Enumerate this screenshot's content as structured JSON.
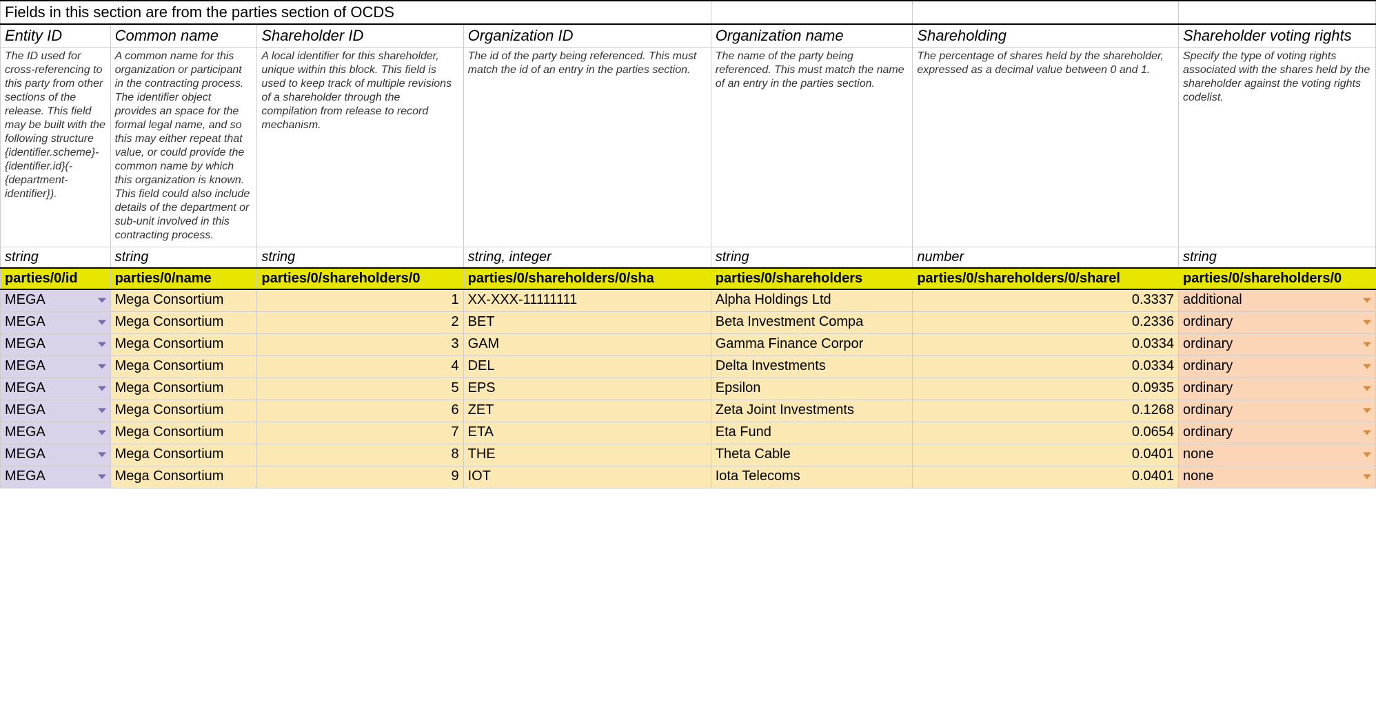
{
  "title": "Fields in this section are from the parties section of OCDS",
  "columns": [
    {
      "header": "Entity ID",
      "desc": "The ID used for cross-referencing to this party from other sections of the release. This field may be built with the following structure {identifier.scheme}-{identifier.id}(-{department-identifier}).",
      "type": "string",
      "path": "parties/0/id",
      "colClass": "col-purple",
      "dropdown": "purple",
      "align": "left"
    },
    {
      "header": "Common name",
      "desc": "A common name for this organization or participant in the contracting process. The identifier object provides an space for the formal legal name, and so this may either repeat that value, or could provide the common name by which this organization is known. This field could also include details of the department or sub-unit involved in this contracting process.",
      "type": "string",
      "path": "parties/0/name",
      "colClass": "col-yellow",
      "dropdown": null,
      "align": "left"
    },
    {
      "header": "Shareholder ID",
      "desc": "A local identifier for this shareholder, unique within this block. This field is used to keep track of multiple revisions of a shareholder through the compilation from release to record mechanism.",
      "type": "string",
      "path": "parties/0/shareholders/0",
      "colClass": "col-yellow",
      "dropdown": null,
      "align": "right"
    },
    {
      "header": "Organization ID",
      "desc": "The id of the party being referenced. This must match the id of an entry in the parties section.",
      "type": "string, integer",
      "path": "parties/0/shareholders/0/sha",
      "colClass": "col-yellow",
      "dropdown": null,
      "align": "left"
    },
    {
      "header": "Organization name",
      "desc": "The name of the party being referenced. This must match the name of an entry in the parties section.",
      "type": "string",
      "path": "parties/0/shareholders",
      "colClass": "col-yellow",
      "dropdown": null,
      "align": "left"
    },
    {
      "header": "Shareholding",
      "desc": "The percentage of shares held by the shareholder, expressed as a decimal value between 0 and 1.",
      "type": "number",
      "path": "parties/0/shareholders/0/sharel",
      "colClass": "col-yellow",
      "dropdown": null,
      "align": "right"
    },
    {
      "header": "Shareholder voting rights",
      "desc": "Specify the type of voting rights associated with the shares held by the shareholder against the voting rights codelist.",
      "type": "string",
      "path": "parties/0/shareholders/0",
      "colClass": "col-orange",
      "dropdown": "orange",
      "align": "left"
    }
  ],
  "rows": [
    [
      "MEGA",
      "Mega Consortium",
      "1",
      "XX-XXX-11111111",
      "Alpha Holdings Ltd",
      "0.3337",
      "additional"
    ],
    [
      "MEGA",
      "Mega Consortium",
      "2",
      "BET",
      "Beta Investment Compa",
      "0.2336",
      "ordinary"
    ],
    [
      "MEGA",
      "Mega Consortium",
      "3",
      "GAM",
      "Gamma Finance Corpor",
      "0.0334",
      "ordinary"
    ],
    [
      "MEGA",
      "Mega Consortium",
      "4",
      "DEL",
      "Delta Investments",
      "0.0334",
      "ordinary"
    ],
    [
      "MEGA",
      "Mega Consortium",
      "5",
      "EPS",
      "Epsilon",
      "0.0935",
      "ordinary"
    ],
    [
      "MEGA",
      "Mega Consortium",
      "6",
      "ZET",
      "Zeta Joint Investments",
      "0.1268",
      "ordinary"
    ],
    [
      "MEGA",
      "Mega Consortium",
      "7",
      "ETA",
      "Eta Fund",
      "0.0654",
      "ordinary"
    ],
    [
      "MEGA",
      "Mega Consortium",
      "8",
      "THE",
      "Theta Cable",
      "0.0401",
      "none"
    ],
    [
      "MEGA",
      "Mega Consortium",
      "9",
      "IOT",
      "Iota Telecoms",
      "0.0401",
      "none"
    ]
  ]
}
